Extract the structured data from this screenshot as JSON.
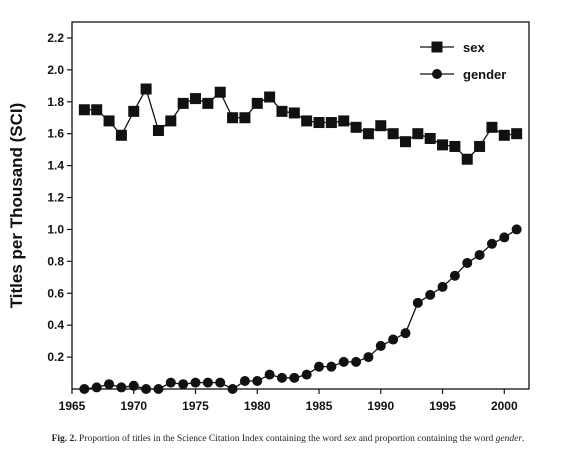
{
  "chart_data": {
    "type": "line",
    "title": "",
    "xlabel": "",
    "ylabel": "Titles per Thousand (SCI)",
    "xlim": [
      1965,
      2002
    ],
    "ylim": [
      0,
      2.3
    ],
    "x_ticks": [
      1965,
      1970,
      1975,
      1980,
      1985,
      1990,
      1995,
      2000
    ],
    "y_ticks": [
      0.2,
      0.4,
      0.6,
      0.8,
      1.0,
      1.2,
      1.4,
      1.6,
      1.8,
      2.0,
      2.2
    ],
    "y_tick_labels": [
      "0.2",
      "0.4",
      "0.6",
      "0.8",
      "1.0",
      "1.2",
      "1.4",
      "1.6",
      "1.8",
      "2.0",
      "2.2"
    ],
    "grid": false,
    "legend_position": "top-right",
    "x": [
      1966,
      1967,
      1968,
      1969,
      1970,
      1971,
      1972,
      1973,
      1974,
      1975,
      1976,
      1977,
      1978,
      1979,
      1980,
      1981,
      1982,
      1983,
      1984,
      1985,
      1986,
      1987,
      1988,
      1989,
      1990,
      1991,
      1992,
      1993,
      1994,
      1995,
      1996,
      1997,
      1998,
      1999,
      2000,
      2001
    ],
    "series": [
      {
        "name": "sex",
        "marker": "square",
        "values": [
          1.75,
          1.75,
          1.68,
          1.59,
          1.74,
          1.88,
          1.62,
          1.68,
          1.79,
          1.82,
          1.79,
          1.86,
          1.7,
          1.7,
          1.79,
          1.83,
          1.74,
          1.73,
          1.68,
          1.67,
          1.67,
          1.68,
          1.64,
          1.6,
          1.65,
          1.6,
          1.55,
          1.6,
          1.57,
          1.53,
          1.52,
          1.44,
          1.52,
          1.64,
          1.59,
          1.6
        ]
      },
      {
        "name": "gender",
        "marker": "circle",
        "values": [
          0.0,
          0.01,
          0.03,
          0.01,
          0.02,
          0.0,
          0.0,
          0.04,
          0.03,
          0.04,
          0.04,
          0.04,
          0.0,
          0.05,
          0.05,
          0.09,
          0.07,
          0.07,
          0.09,
          0.14,
          0.14,
          0.17,
          0.17,
          0.2,
          0.27,
          0.31,
          0.35,
          0.54,
          0.59,
          0.64,
          0.71,
          0.79,
          0.84,
          0.91,
          0.95,
          1.0
        ]
      }
    ]
  },
  "caption": {
    "label": "Fig. 2.",
    "text_before_sex": "Proportion of titles in the Science Citation Index containing the word ",
    "word_sex": "sex",
    "text_between": " and proportion containing the word ",
    "word_gender": "gender",
    "text_end": "."
  }
}
